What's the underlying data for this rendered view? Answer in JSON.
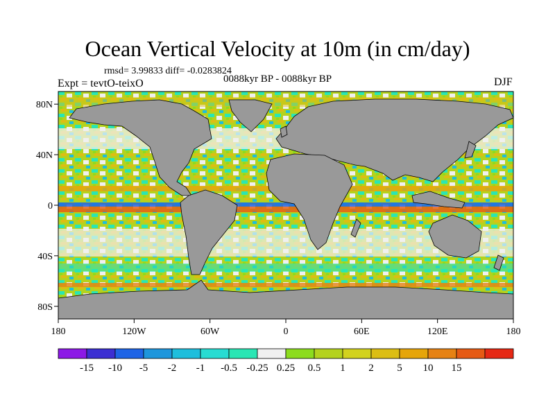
{
  "title": "Ocean Vertical Velocity at 10m (in cm/day)",
  "stats_text": "rmsd= 3.99833 diff= -0.0283824",
  "period_text": "0088kyr BP - 0088kyr BP",
  "experiment_text": "Expt = tevtO-teixO",
  "season": "DJF",
  "map": {
    "projection": "equirectangular",
    "lon_range": [
      -180,
      180
    ],
    "lat_range": [
      -90,
      90
    ],
    "land_color": "#999999",
    "lat_ticks": [
      {
        "value": 80,
        "label": "80N"
      },
      {
        "value": 40,
        "label": "40N"
      },
      {
        "value": 0,
        "label": "0"
      },
      {
        "value": -40,
        "label": "40S"
      },
      {
        "value": -80,
        "label": "80S"
      }
    ],
    "lon_ticks": [
      {
        "value": -180,
        "label": "180"
      },
      {
        "value": -120,
        "label": "120W"
      },
      {
        "value": -60,
        "label": "60W"
      },
      {
        "value": 0,
        "label": "0"
      },
      {
        "value": 60,
        "label": "60E"
      },
      {
        "value": 120,
        "label": "120E"
      },
      {
        "value": 180,
        "label": "180"
      }
    ]
  },
  "colorbar": {
    "colors": [
      "#8c19e6",
      "#3c2fd2",
      "#1e64e6",
      "#1e96dc",
      "#1ebedc",
      "#28dcd2",
      "#2ae6b4",
      "#f0f0f0",
      "#8cdc1e",
      "#b4d21e",
      "#d2d21e",
      "#dcbe14",
      "#e6a50a",
      "#e68214",
      "#e65a14",
      "#e62814"
    ],
    "labels": [
      "-15",
      "-10",
      "-5",
      "-2",
      "-1",
      "-0.5",
      "-0.25",
      "0.25",
      "0.5",
      "1",
      "2",
      "5",
      "10",
      "15"
    ]
  }
}
